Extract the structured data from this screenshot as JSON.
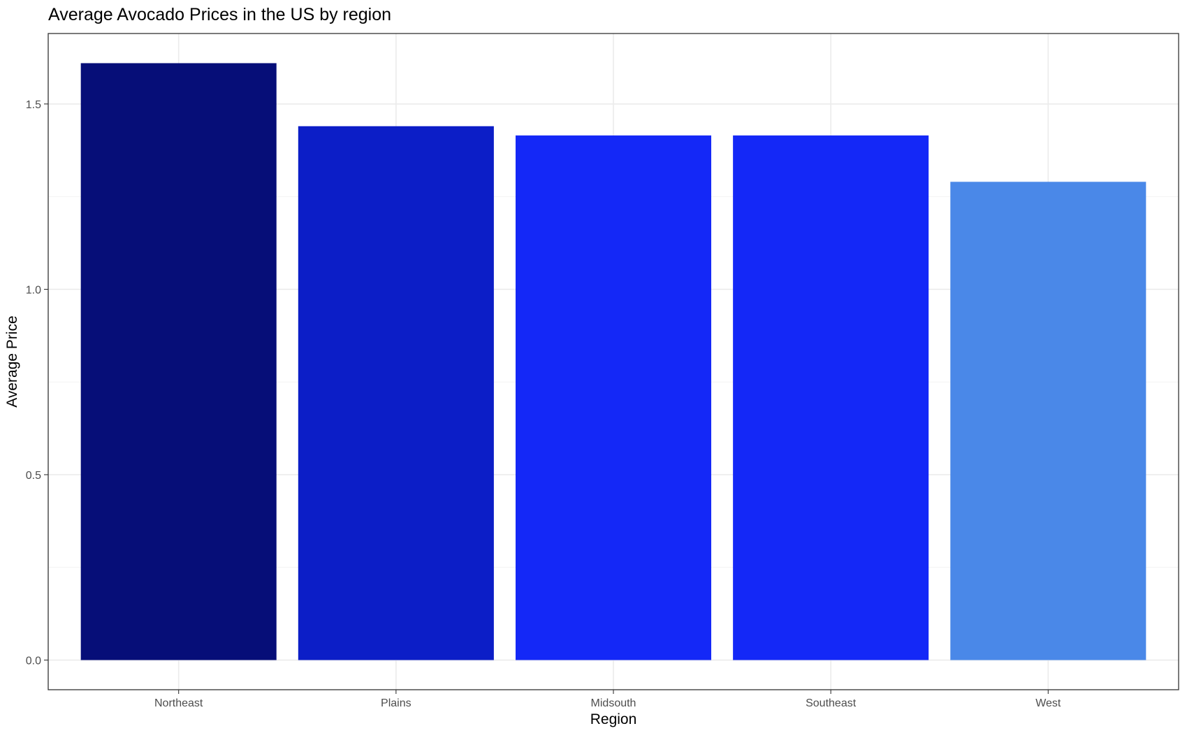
{
  "chart_data": {
    "type": "bar",
    "title": "Average Avocado Prices in the US by region",
    "xlabel": "Region",
    "ylabel": "Average Price",
    "categories": [
      "Northeast",
      "Plains",
      "Midsouth",
      "Southeast",
      "West"
    ],
    "values": [
      1.61,
      1.44,
      1.415,
      1.415,
      1.29
    ],
    "colors": [
      "#060e78",
      "#0c1ec7",
      "#1428f7",
      "#1428f7",
      "#4a88e8"
    ],
    "yticks": [
      0.0,
      0.5,
      1.0,
      1.5
    ],
    "ytick_labels": [
      "0.0",
      "0.5",
      "1.0",
      "1.5"
    ],
    "ylim": [
      -0.08,
      1.69
    ],
    "grid": true,
    "legend": "none"
  }
}
